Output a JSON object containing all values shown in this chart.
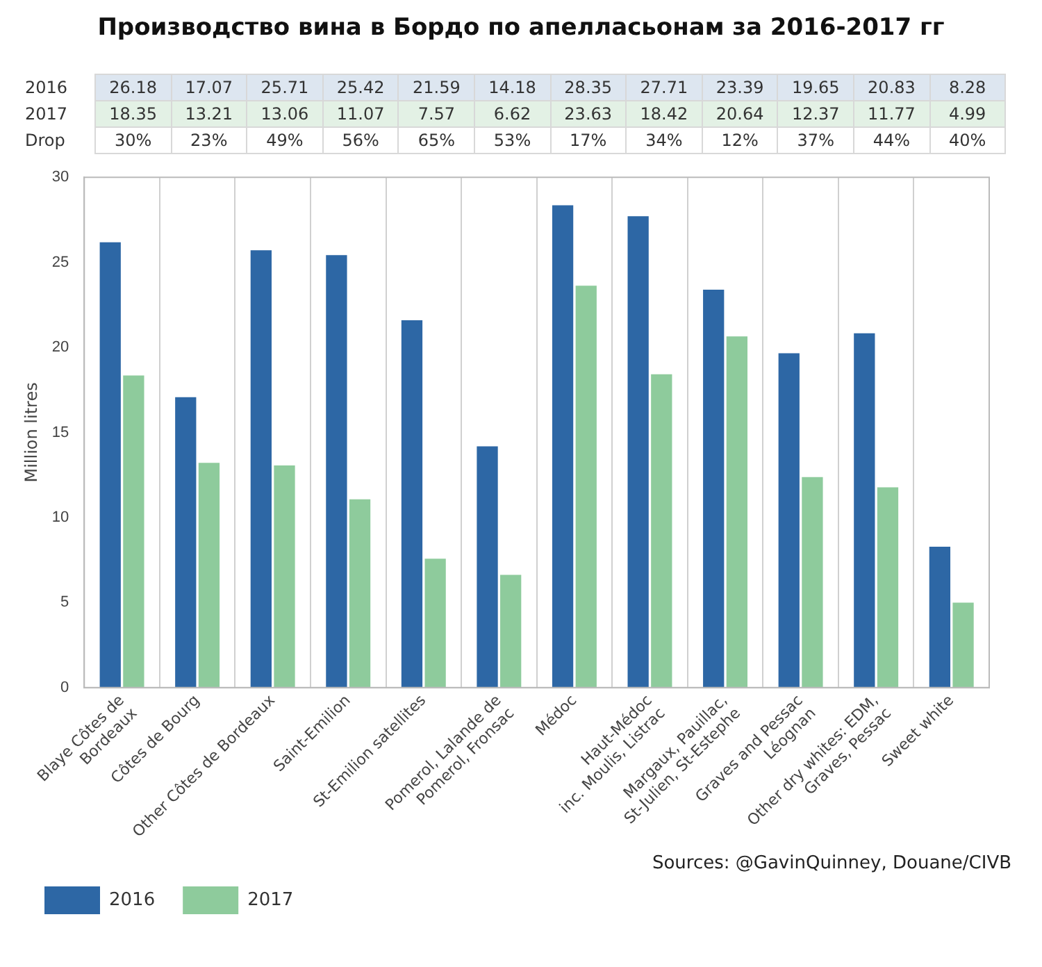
{
  "chart_data": {
    "type": "bar",
    "title": "Производство вина в Бордо по апелласьонам за 2016-2017 гг",
    "ylabel": "Million litres",
    "categories": [
      "Blaye Côtes de\nBordeaux",
      "Côtes de Bourg",
      "Other Côtes de Bordeaux",
      "Saint-Emilion",
      "St-Emilion satellites",
      "Pomerol, Lalande de\nPomerol, Fronsac",
      "Médoc",
      "Haut-Médoc\ninc. Moulis, Listrac",
      "Margaux, Pauillac,\nSt-Julien, St-Estephe",
      "Graves and Pessac\nLéognan",
      "Other dry whites: EDM,\nGraves, Pessac",
      "Sweet white"
    ],
    "series": [
      {
        "name": "2016",
        "color": "#2d67a5",
        "values": [
          26.18,
          17.07,
          25.71,
          25.42,
          21.59,
          14.18,
          28.35,
          27.71,
          23.39,
          19.65,
          20.83,
          8.28
        ]
      },
      {
        "name": "2017",
        "color": "#8ecb9c",
        "values": [
          18.35,
          13.21,
          13.06,
          11.07,
          7.57,
          6.62,
          23.63,
          18.42,
          20.64,
          12.37,
          11.77,
          4.99
        ]
      }
    ],
    "ylim": [
      0,
      30
    ],
    "yticks": [
      0,
      5,
      10,
      15,
      20,
      25,
      30
    ],
    "grid": "x",
    "legend": "bottom left",
    "data_labels": true,
    "annotations": [
      "Drop",
      "30%",
      "23%",
      "49%",
      "56%",
      "65%",
      "53%",
      "17%",
      "34%",
      "12%",
      "37%",
      "44%",
      "40%",
      "Sources: @GavinQuinney, Douane/CIVB"
    ]
  }
}
